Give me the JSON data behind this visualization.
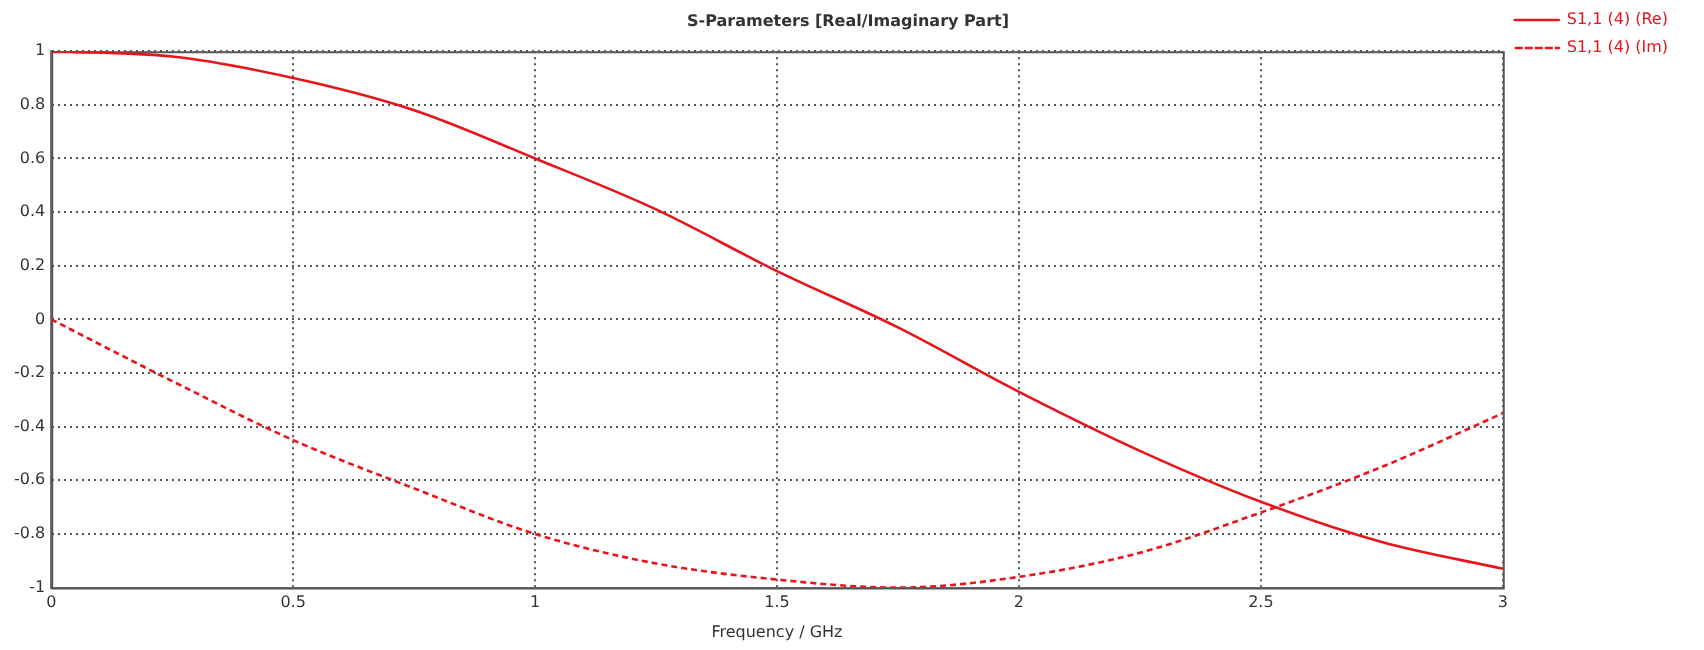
{
  "chart_data": {
    "type": "line",
    "title": "S-Parameters [Real/Imaginary Part]",
    "xlabel": "Frequency / GHz",
    "x": [
      0,
      0.25,
      0.5,
      0.75,
      1,
      1.25,
      1.5,
      1.75,
      2,
      2.25,
      2.5,
      2.75,
      3
    ],
    "series": [
      {
        "name": "S1,1 (4) (Re)",
        "color": "#e8141b",
        "line_style": "solid",
        "values": [
          1,
          0.98,
          0.9,
          0.78,
          0.6,
          0.41,
          0.18,
          -0.03,
          -0.27,
          -0.49,
          -0.68,
          -0.83,
          -0.93
        ]
      },
      {
        "name": "S1,1 (4) (Im)",
        "color": "#e8141b",
        "line_style": "dashed",
        "values": [
          0,
          -0.23,
          -0.45,
          -0.63,
          -0.8,
          -0.91,
          -0.97,
          -1,
          -0.96,
          -0.87,
          -0.72,
          -0.55,
          -0.35
        ]
      }
    ],
    "xlim": [
      0,
      3
    ],
    "xticks": [
      0,
      0.5,
      1,
      1.5,
      2,
      2.5,
      3
    ],
    "ylim": [
      -1,
      1
    ],
    "yticks": [
      -1,
      -0.8,
      -0.6,
      -0.4,
      -0.2,
      0,
      0.2,
      0.4,
      0.6,
      0.8,
      1
    ],
    "grid": true,
    "legend": "top right",
    "marker": "none"
  }
}
